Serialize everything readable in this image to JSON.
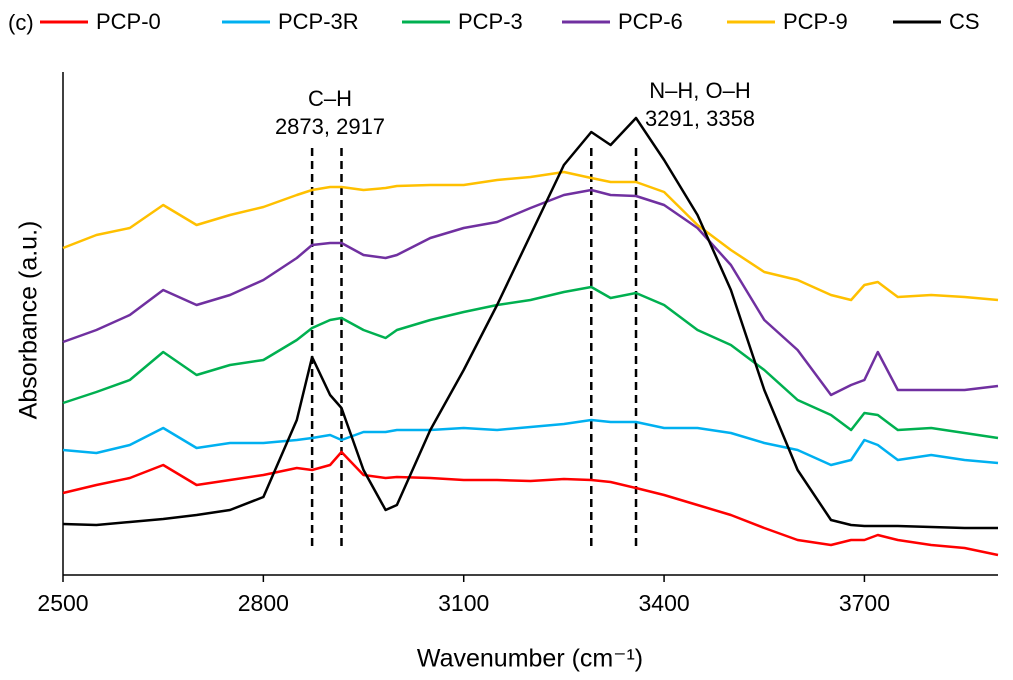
{
  "chart_data": {
    "type": "line",
    "panel_label": "(c)",
    "xlabel": "Wavenumber (cm⁻¹)",
    "ylabel": "Absorbance (a.u.)",
    "x": [
      2500,
      2550,
      2600,
      2650,
      2700,
      2750,
      2800,
      2850,
      2873,
      2900,
      2917,
      2950,
      2983,
      3000,
      3050,
      3100,
      3150,
      3200,
      3250,
      3291,
      3320,
      3358,
      3400,
      3450,
      3500,
      3550,
      3600,
      3650,
      3680,
      3700,
      3720,
      3750,
      3800,
      3850,
      3900
    ],
    "xlim": [
      2500,
      3900
    ],
    "xticks": [
      2500,
      2800,
      3100,
      3400,
      3700
    ],
    "ylim": [
      0,
      500
    ],
    "series": [
      {
        "name": "PCP-0",
        "color": "#ff0000",
        "values": [
          82,
          90,
          97,
          110,
          90,
          95,
          100,
          107,
          105,
          110,
          123,
          100,
          97,
          98,
          97,
          95,
          95,
          94,
          96,
          95,
          93,
          87,
          80,
          70,
          60,
          47,
          35,
          30,
          35,
          35,
          40,
          35,
          30,
          27,
          20
        ]
      },
      {
        "name": "PCP-3R",
        "color": "#00b0f0",
        "values": [
          125,
          122,
          130,
          147,
          127,
          132,
          132,
          135,
          137,
          140,
          135,
          143,
          143,
          145,
          145,
          147,
          145,
          148,
          151,
          155,
          153,
          153,
          147,
          147,
          142,
          132,
          125,
          110,
          115,
          135,
          130,
          115,
          120,
          115,
          112
        ]
      },
      {
        "name": "PCP-3",
        "color": "#00b050",
        "values": [
          172,
          183,
          195,
          223,
          200,
          210,
          215,
          235,
          247,
          255,
          257,
          245,
          237,
          245,
          255,
          263,
          270,
          275,
          283,
          288,
          277,
          282,
          270,
          245,
          230,
          205,
          175,
          160,
          145,
          162,
          160,
          145,
          147,
          142,
          137
        ]
      },
      {
        "name": "PCP-6",
        "color": "#7030a0",
        "values": [
          233,
          245,
          260,
          285,
          270,
          280,
          295,
          317,
          330,
          332,
          332,
          320,
          317,
          320,
          337,
          347,
          353,
          367,
          380,
          385,
          380,
          379,
          370,
          347,
          310,
          255,
          225,
          180,
          190,
          195,
          223,
          185,
          185,
          185,
          189
        ]
      },
      {
        "name": "PCP-9",
        "color": "#ffc000",
        "values": [
          327,
          340,
          347,
          370,
          350,
          360,
          368,
          380,
          385,
          388,
          388,
          385,
          387,
          389,
          390,
          390,
          395,
          398,
          403,
          397,
          393,
          393,
          383,
          350,
          325,
          303,
          295,
          280,
          275,
          290,
          293,
          278,
          280,
          278,
          275
        ]
      },
      {
        "name": "CS",
        "color": "#000000",
        "values": [
          51,
          50,
          53,
          56,
          60,
          65,
          78,
          155,
          218,
          180,
          167,
          105,
          65,
          70,
          145,
          205,
          270,
          340,
          410,
          443,
          430,
          457,
          415,
          360,
          285,
          185,
          105,
          55,
          50,
          49,
          49,
          49,
          48,
          47,
          47
        ]
      }
    ],
    "markers": [
      2873,
      2917,
      3291,
      3358
    ],
    "annotations": [
      {
        "group": "C–H",
        "positions": "2873, 2917"
      },
      {
        "group": "N–H, O–H",
        "positions": "3291, 3358"
      }
    ]
  }
}
